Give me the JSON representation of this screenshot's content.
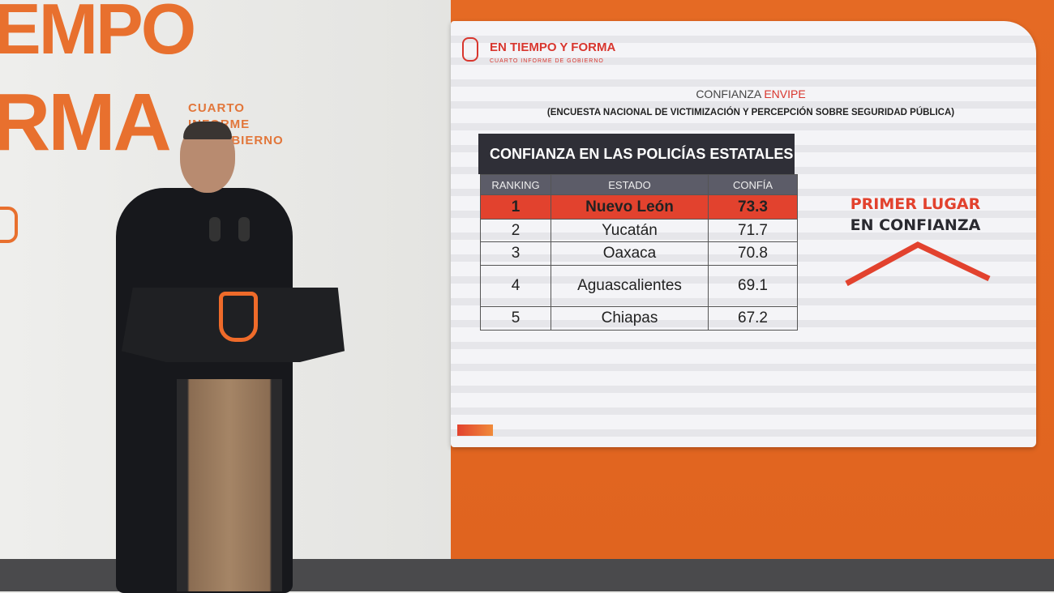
{
  "backdrop": {
    "line1": "EMPO",
    "line2": "RMA",
    "subtitle": [
      "CUARTO",
      "INFORME",
      "DE GOBIERNO"
    ]
  },
  "screen": {
    "logo": {
      "title": "EN TIEMPO Y FORMA",
      "subtitle": "CUARTO INFORME DE GOBIERNO"
    },
    "heading": {
      "main": "CONFIANZA",
      "accent": "ENVIPE",
      "sub": "(ENCUESTA NACIONAL DE VICTIMIZACIÓN Y PERCEPCIÓN SOBRE SEGURIDAD PÚBLICA)"
    },
    "table": {
      "title": "CONFIANZA EN LAS POLICÍAS ESTATALES",
      "headers": [
        "RANKING",
        "ESTADO",
        "CONFÍA"
      ],
      "rows": [
        [
          "1",
          "Nuevo León",
          "73.3"
        ],
        [
          "2",
          "Yucatán",
          "71.7"
        ],
        [
          "3",
          "Oaxaca",
          "70.8"
        ],
        [
          "4",
          "Aguascalientes",
          "69.1"
        ],
        [
          "5",
          "Chiapas",
          "67.2"
        ]
      ]
    },
    "badge": {
      "line1": "PRIMER LUGAR",
      "line2": "EN CONFIANZA"
    }
  },
  "colors": {
    "brand_orange": "#e8702e",
    "highlight_red": "#e2422e",
    "accent_red": "#d8362e"
  }
}
